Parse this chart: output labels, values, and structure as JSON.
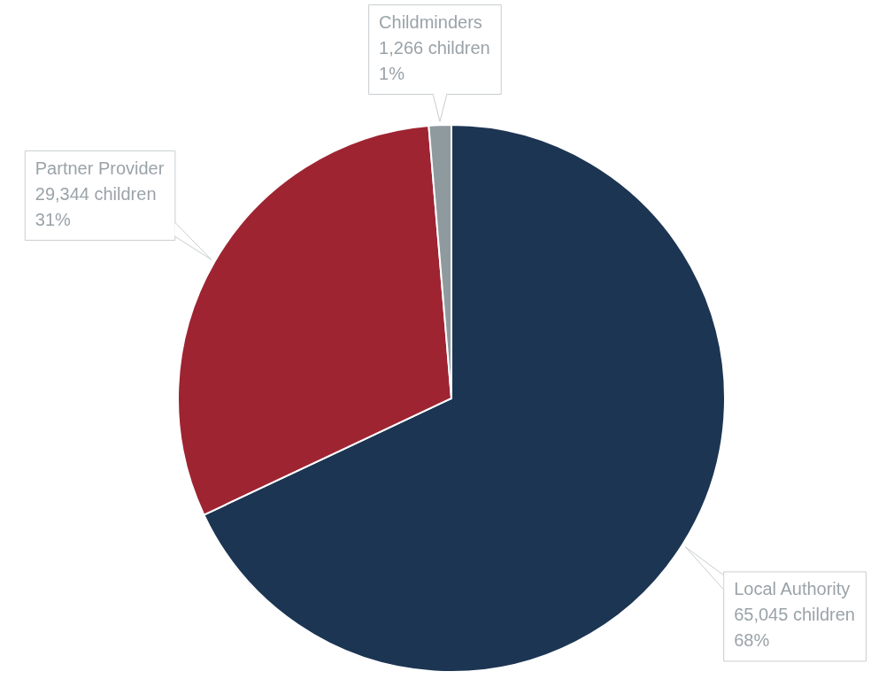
{
  "chart_data": {
    "type": "pie",
    "categories": [
      "Local Authority",
      "Partner Provider",
      "Childminders"
    ],
    "values": [
      65045,
      29344,
      1266
    ],
    "colors": [
      "#1c3553",
      "#9e2432",
      "#8f9a9f"
    ],
    "value_labels": [
      "65,045 children\n68%",
      "29,344 children\n31%",
      "1,266 children\n1%"
    ],
    "legend": false
  }
}
